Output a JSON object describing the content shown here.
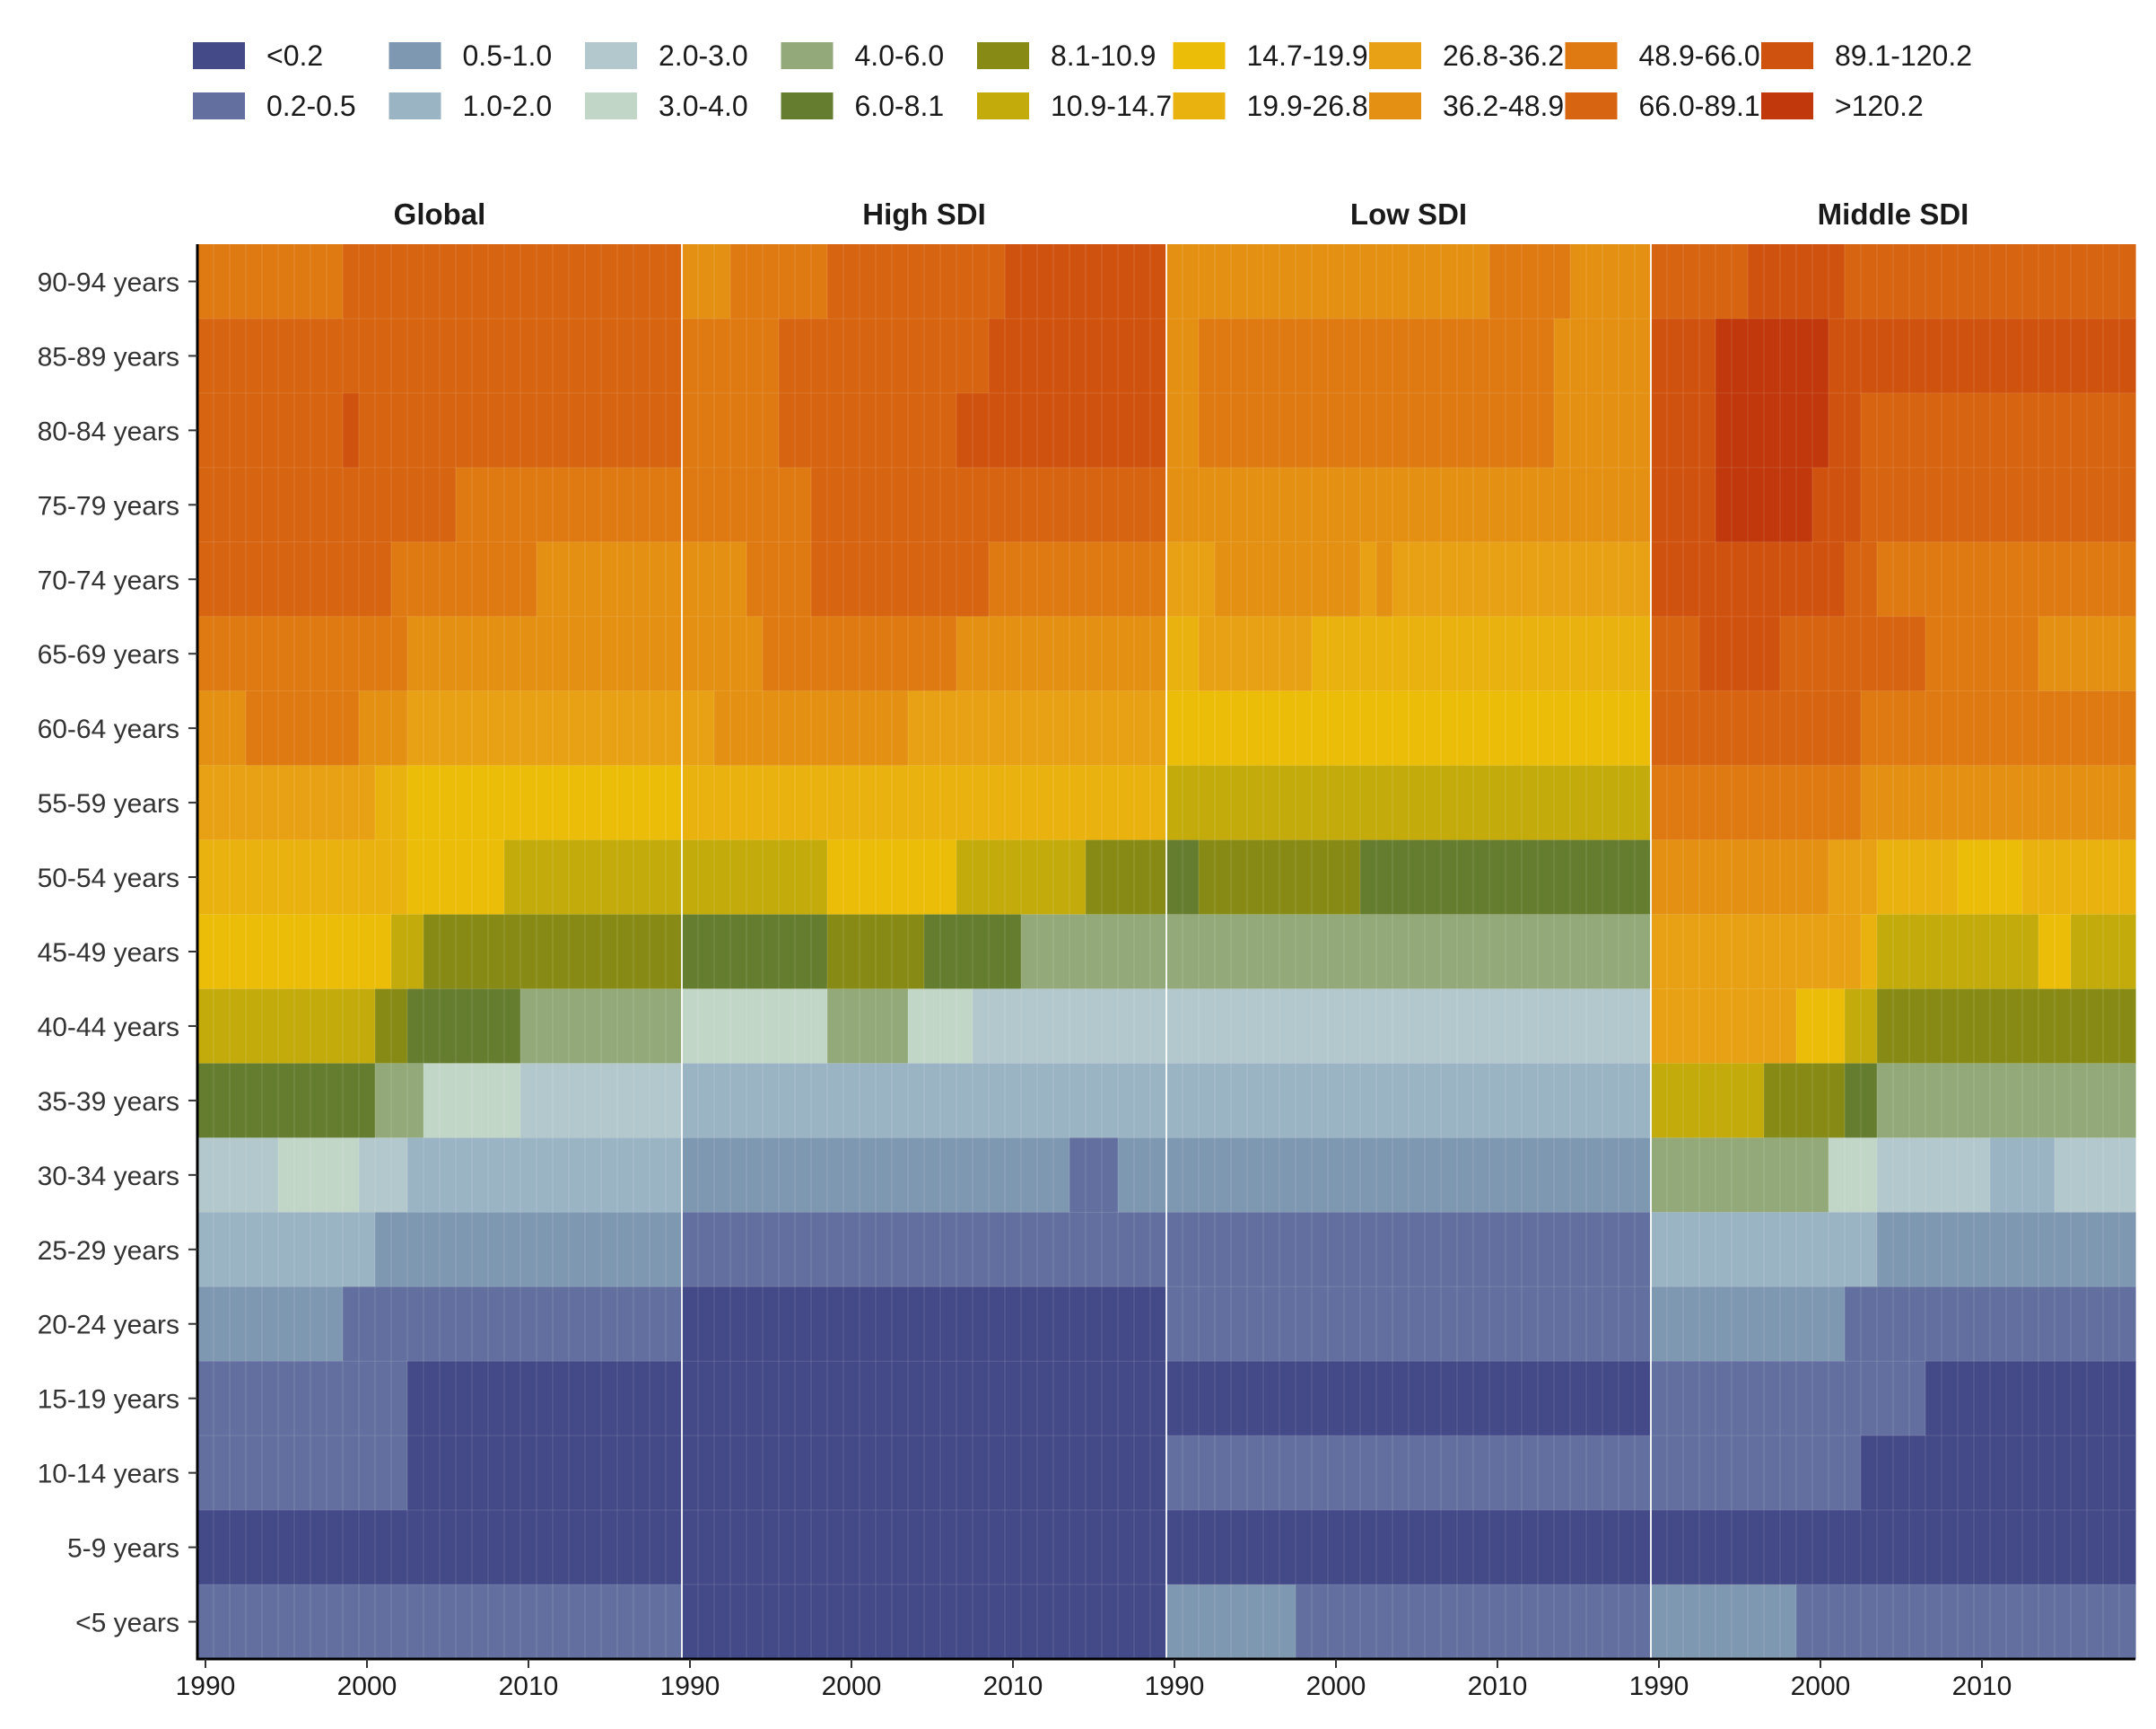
{
  "chart_data": {
    "type": "heatmap",
    "x_range": [
      1990,
      2019
    ],
    "x_ticks": [
      "1990",
      "2000",
      "2010"
    ],
    "facets": [
      "Global",
      "High SDI",
      "Low SDI",
      "Middle SDI"
    ],
    "age_groups": [
      "90-94 years",
      "85-89 years",
      "80-84 years",
      "75-79 years",
      "70-74 years",
      "65-69 years",
      "60-64 years",
      "55-59 years",
      "50-54 years",
      "45-49 years",
      "40-44 years",
      "35-39 years",
      "30-34 years",
      "25-29 years",
      "20-24 years",
      "15-19 years",
      "10-14 years",
      "5-9 years",
      "<5 years"
    ],
    "legend": {
      "placement": "top",
      "bins": [
        {
          "label": "<0.2",
          "color": "#444a87"
        },
        {
          "label": "0.2-0.5",
          "color": "#63709f"
        },
        {
          "label": "0.5-1.0",
          "color": "#7f98b2"
        },
        {
          "label": "1.0-2.0",
          "color": "#9ab4c4"
        },
        {
          "label": "2.0-3.0",
          "color": "#b3c8cc"
        },
        {
          "label": "3.0-4.0",
          "color": "#c2d6c8"
        },
        {
          "label": "4.0-6.0",
          "color": "#93a979"
        },
        {
          "label": "6.0-8.1",
          "color": "#657d2f"
        },
        {
          "label": "8.1-10.9",
          "color": "#878b15"
        },
        {
          "label": "10.9-14.7",
          "color": "#c3ab0c"
        },
        {
          "label": "14.7-19.9",
          "color": "#ecbd08"
        },
        {
          "label": "19.9-26.8",
          "color": "#eab20f"
        },
        {
          "label": "26.8-36.2",
          "color": "#e8a114"
        },
        {
          "label": "36.2-48.9",
          "color": "#e49013"
        },
        {
          "label": "48.9-66.0",
          "color": "#df7a12"
        },
        {
          "label": "66.0-89.1",
          "color": "#d76410"
        },
        {
          "label": "89.1-120.2",
          "color": "#cf520e"
        },
        {
          "label": ">120.2",
          "color": "#c0380b"
        }
      ]
    },
    "cells": {
      "Global": [
        [
          [
            1990,
            1998,
            14
          ],
          [
            1999,
            2019,
            15
          ]
        ],
        [
          [
            1990,
            2019,
            15
          ]
        ],
        [
          [
            1990,
            1998,
            15
          ],
          [
            1999,
            1999,
            16
          ],
          [
            2000,
            2019,
            15
          ]
        ],
        [
          [
            1990,
            2005,
            15
          ],
          [
            2006,
            2019,
            14
          ]
        ],
        [
          [
            1990,
            2001,
            15
          ],
          [
            2002,
            2010,
            14
          ],
          [
            2011,
            2019,
            13
          ]
        ],
        [
          [
            1990,
            2002,
            14
          ],
          [
            2003,
            2019,
            13
          ]
        ],
        [
          [
            1990,
            1992,
            13
          ],
          [
            1993,
            1999,
            14
          ],
          [
            2000,
            2002,
            13
          ],
          [
            2003,
            2019,
            12
          ]
        ],
        [
          [
            1990,
            2000,
            12
          ],
          [
            2001,
            2002,
            11
          ],
          [
            2003,
            2019,
            10
          ]
        ],
        [
          [
            1990,
            2000,
            11
          ],
          [
            2001,
            2002,
            11
          ],
          [
            2003,
            2008,
            10
          ],
          [
            2009,
            2019,
            9
          ]
        ],
        [
          [
            1990,
            1993,
            10
          ],
          [
            1994,
            2001,
            10
          ],
          [
            2002,
            2003,
            9
          ],
          [
            2004,
            2019,
            8
          ]
        ],
        [
          [
            1990,
            2000,
            9
          ],
          [
            2001,
            2002,
            8
          ],
          [
            2003,
            2009,
            7
          ],
          [
            2010,
            2019,
            6
          ]
        ],
        [
          [
            1990,
            2000,
            7
          ],
          [
            2001,
            2003,
            6
          ],
          [
            2004,
            2009,
            5
          ],
          [
            2010,
            2019,
            4
          ]
        ],
        [
          [
            1990,
            1994,
            4
          ],
          [
            1995,
            1999,
            5
          ],
          [
            2000,
            2002,
            4
          ],
          [
            2003,
            2019,
            3
          ]
        ],
        [
          [
            1990,
            2000,
            3
          ],
          [
            2001,
            2019,
            2
          ]
        ],
        [
          [
            1990,
            1998,
            2
          ],
          [
            1999,
            2019,
            1
          ]
        ],
        [
          [
            1990,
            2002,
            1
          ],
          [
            2003,
            2019,
            0
          ]
        ],
        [
          [
            1990,
            2002,
            1
          ],
          [
            2003,
            2019,
            0
          ]
        ],
        [
          [
            1990,
            2019,
            0
          ]
        ],
        [
          [
            1990,
            2019,
            1
          ]
        ]
      ],
      "High SDI": [
        [
          [
            1990,
            1992,
            13
          ],
          [
            1993,
            1998,
            14
          ],
          [
            1999,
            2009,
            15
          ],
          [
            2010,
            2019,
            16
          ]
        ],
        [
          [
            1990,
            1990,
            14
          ],
          [
            1991,
            1995,
            14
          ],
          [
            1996,
            2008,
            15
          ],
          [
            2009,
            2019,
            16
          ]
        ],
        [
          [
            1990,
            1995,
            14
          ],
          [
            1996,
            2006,
            15
          ],
          [
            2007,
            2019,
            16
          ]
        ],
        [
          [
            1990,
            1990,
            14
          ],
          [
            1991,
            1997,
            14
          ],
          [
            1998,
            2019,
            15
          ]
        ],
        [
          [
            1990,
            1993,
            13
          ],
          [
            1994,
            1997,
            14
          ],
          [
            1998,
            2008,
            15
          ],
          [
            2009,
            2019,
            14
          ]
        ],
        [
          [
            1990,
            1994,
            13
          ],
          [
            1995,
            2006,
            14
          ],
          [
            2007,
            2019,
            13
          ]
        ],
        [
          [
            1990,
            1991,
            12
          ],
          [
            1992,
            2003,
            13
          ],
          [
            2004,
            2019,
            12
          ]
        ],
        [
          [
            1990,
            2019,
            11
          ]
        ],
        [
          [
            1990,
            1998,
            9
          ],
          [
            1999,
            2006,
            10
          ],
          [
            2007,
            2014,
            9
          ],
          [
            2015,
            2019,
            8
          ]
        ],
        [
          [
            1990,
            1998,
            7
          ],
          [
            1999,
            2004,
            8
          ],
          [
            2005,
            2010,
            7
          ],
          [
            2011,
            2019,
            6
          ]
        ],
        [
          [
            1990,
            1998,
            5
          ],
          [
            1999,
            2003,
            6
          ],
          [
            2004,
            2007,
            5
          ],
          [
            2008,
            2019,
            4
          ]
        ],
        [
          [
            1990,
            2019,
            3
          ]
        ],
        [
          [
            1990,
            2013,
            2
          ],
          [
            2014,
            2016,
            1
          ],
          [
            2017,
            2019,
            2
          ]
        ],
        [
          [
            1990,
            2019,
            1
          ]
        ],
        [
          [
            1990,
            2019,
            0
          ]
        ],
        [
          [
            1990,
            2019,
            0
          ]
        ],
        [
          [
            1990,
            2019,
            0
          ]
        ],
        [
          [
            1990,
            2019,
            0
          ]
        ],
        [
          [
            1990,
            2019,
            0
          ]
        ]
      ],
      "Low SDI": [
        [
          [
            1990,
            2009,
            13
          ],
          [
            2010,
            2014,
            14
          ],
          [
            2015,
            2019,
            13
          ]
        ],
        [
          [
            1990,
            1991,
            13
          ],
          [
            1992,
            2013,
            14
          ],
          [
            2014,
            2019,
            13
          ]
        ],
        [
          [
            1990,
            1991,
            13
          ],
          [
            1992,
            2013,
            14
          ],
          [
            2014,
            2019,
            13
          ]
        ],
        [
          [
            1990,
            2019,
            13
          ]
        ],
        [
          [
            1990,
            1992,
            12
          ],
          [
            1993,
            2001,
            13
          ],
          [
            2002,
            2002,
            12
          ],
          [
            2003,
            2003,
            13
          ],
          [
            2004,
            2019,
            12
          ]
        ],
        [
          [
            1990,
            1991,
            11
          ],
          [
            1992,
            1998,
            12
          ],
          [
            1999,
            2019,
            11
          ]
        ],
        [
          [
            1990,
            2019,
            10
          ]
        ],
        [
          [
            1990,
            2019,
            9
          ]
        ],
        [
          [
            1990,
            1991,
            7
          ],
          [
            1992,
            2001,
            8
          ],
          [
            2002,
            2019,
            7
          ]
        ],
        [
          [
            1990,
            2019,
            6
          ]
        ],
        [
          [
            1990,
            2019,
            4
          ]
        ],
        [
          [
            1990,
            2019,
            3
          ]
        ],
        [
          [
            1990,
            2019,
            2
          ]
        ],
        [
          [
            1990,
            2019,
            1
          ]
        ],
        [
          [
            1990,
            2019,
            1
          ]
        ],
        [
          [
            1990,
            2019,
            0
          ]
        ],
        [
          [
            1990,
            2019,
            1
          ]
        ],
        [
          [
            1990,
            2019,
            0
          ]
        ],
        [
          [
            1990,
            1997,
            2
          ],
          [
            1998,
            2019,
            1
          ]
        ]
      ],
      "Middle SDI": [
        [
          [
            1990,
            1995,
            15
          ],
          [
            1996,
            2001,
            16
          ],
          [
            2002,
            2019,
            15
          ]
        ],
        [
          [
            1990,
            1993,
            16
          ],
          [
            1994,
            2000,
            17
          ],
          [
            2001,
            2019,
            16
          ]
        ],
        [
          [
            1990,
            1993,
            16
          ],
          [
            1994,
            2000,
            17
          ],
          [
            2001,
            2002,
            16
          ],
          [
            2003,
            2019,
            15
          ]
        ],
        [
          [
            1990,
            1993,
            16
          ],
          [
            1994,
            1999,
            17
          ],
          [
            2000,
            2002,
            16
          ],
          [
            2003,
            2019,
            15
          ]
        ],
        [
          [
            1990,
            2001,
            16
          ],
          [
            2002,
            2003,
            15
          ],
          [
            2004,
            2019,
            14
          ]
        ],
        [
          [
            1990,
            1992,
            15
          ],
          [
            1993,
            1997,
            16
          ],
          [
            1998,
            2002,
            15
          ],
          [
            2003,
            2006,
            15
          ],
          [
            2007,
            2013,
            14
          ],
          [
            2014,
            2019,
            13
          ]
        ],
        [
          [
            1990,
            2002,
            15
          ],
          [
            2003,
            2019,
            14
          ]
        ],
        [
          [
            1990,
            2002,
            14
          ],
          [
            2003,
            2019,
            13
          ]
        ],
        [
          [
            1990,
            2000,
            13
          ],
          [
            2001,
            2003,
            12
          ],
          [
            2004,
            2008,
            11
          ],
          [
            2009,
            2012,
            10
          ],
          [
            2013,
            2019,
            11
          ]
        ],
        [
          [
            1990,
            2002,
            12
          ],
          [
            2003,
            2003,
            11
          ],
          [
            2004,
            2013,
            9
          ],
          [
            2014,
            2015,
            10
          ],
          [
            2016,
            2019,
            9
          ]
        ],
        [
          [
            1990,
            1998,
            12
          ],
          [
            1999,
            2001,
            10
          ],
          [
            2002,
            2003,
            9
          ],
          [
            2004,
            2019,
            8
          ]
        ],
        [
          [
            1990,
            1996,
            9
          ],
          [
            1997,
            2001,
            8
          ],
          [
            2002,
            2003,
            7
          ],
          [
            2004,
            2019,
            6
          ]
        ],
        [
          [
            1990,
            2000,
            6
          ],
          [
            2001,
            2003,
            5
          ],
          [
            2004,
            2010,
            4
          ],
          [
            2011,
            2014,
            3
          ],
          [
            2015,
            2019,
            4
          ]
        ],
        [
          [
            1990,
            2003,
            3
          ],
          [
            2004,
            2019,
            2
          ]
        ],
        [
          [
            1990,
            2001,
            2
          ],
          [
            2002,
            2019,
            1
          ]
        ],
        [
          [
            1990,
            2006,
            1
          ],
          [
            2007,
            2019,
            0
          ]
        ],
        [
          [
            1990,
            2002,
            1
          ],
          [
            2003,
            2019,
            0
          ]
        ],
        [
          [
            1990,
            2019,
            0
          ]
        ],
        [
          [
            1990,
            1998,
            2
          ],
          [
            1999,
            2019,
            1
          ]
        ]
      ]
    }
  }
}
